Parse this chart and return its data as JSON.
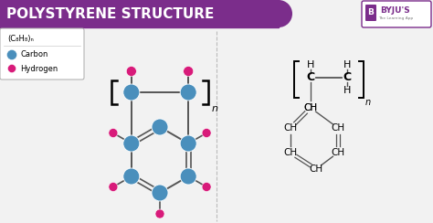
{
  "title": "POLYSTYRENE STRUCTURE",
  "title_bg": "#7B2D8B",
  "title_fg": "#FFFFFF",
  "bg": "#F2F2F2",
  "carbon_color": "#4A8FBC",
  "hydrogen_color": "#D81B7A",
  "bond_color": "#555555",
  "byju_border": "#7B2D8B",
  "legend_formula": "(C₈H₈)ₙ",
  "legend_carbon": "Carbon",
  "legend_hydrogen": "Hydrogen"
}
